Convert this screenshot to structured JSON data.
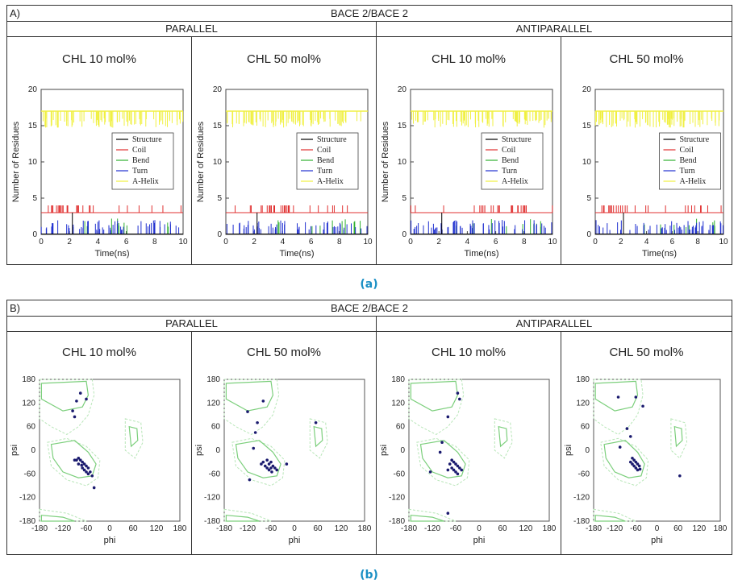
{
  "panels": {
    "a": {
      "letter": "A)",
      "header": "BACE 2/BACE 2",
      "groups": [
        "PARALLEL",
        "ANTIPARALLEL"
      ],
      "caption": "(a)"
    },
    "b": {
      "letter": "B)",
      "header": "BACE 2/BACE 2",
      "groups": [
        "PARALLEL",
        "ANTIPARALLEL"
      ],
      "caption": "(b)"
    }
  },
  "colors": {
    "structure": "#000000",
    "coil": "#e03030",
    "bend": "#30b030",
    "turn": "#2030d0",
    "helix": "#f0f040",
    "points": "#1a1a6e",
    "contour": "#7ccf7c",
    "contour_outer": "#b8e6b8"
  },
  "chart_data": [
    {
      "type": "line",
      "title": "CHL 10 mol%",
      "group": "PARALLEL",
      "xlabel": "Time(ns)",
      "ylabel": "Number of Residues",
      "xlim": [
        0,
        10
      ],
      "ylim": [
        0,
        20
      ],
      "xticks": [
        0,
        2,
        4,
        6,
        8,
        10
      ],
      "yticks": [
        0,
        5,
        10,
        15,
        20
      ],
      "legend": [
        "Structure",
        "Coil",
        "Bend",
        "Turn",
        "A-Helix"
      ],
      "series": [
        {
          "name": "A-Helix",
          "values": [
            17,
            16,
            17
          ]
        },
        {
          "name": "Coil",
          "values": [
            3,
            3,
            4
          ]
        },
        {
          "name": "Turn",
          "values": [
            0,
            1,
            2
          ]
        }
      ]
    },
    {
      "type": "line",
      "title": "CHL 50 mol%",
      "group": "PARALLEL",
      "xlabel": "Time(ns)",
      "ylabel": "Number of Residues",
      "xlim": [
        0,
        10
      ],
      "ylim": [
        0,
        20
      ],
      "xticks": [
        0,
        2,
        4,
        6,
        8,
        10
      ],
      "yticks": [
        0,
        5,
        10,
        15,
        20
      ],
      "legend": [
        "Structure",
        "Coil",
        "Bend",
        "Turn",
        "A-Helix"
      ],
      "series": [
        {
          "name": "A-Helix",
          "values": [
            17,
            16,
            17
          ]
        },
        {
          "name": "Coil",
          "values": [
            3,
            4,
            4
          ]
        },
        {
          "name": "Turn",
          "values": [
            0,
            1,
            2
          ]
        }
      ]
    },
    {
      "type": "line",
      "title": "CHL 10 mol%",
      "group": "ANTIPARALLEL",
      "xlabel": "Time(ns)",
      "ylabel": "Number of Residues",
      "xlim": [
        0,
        10
      ],
      "ylim": [
        0,
        20
      ],
      "xticks": [
        0,
        2,
        4,
        6,
        8,
        10
      ],
      "yticks": [
        0,
        5,
        10,
        15,
        20
      ],
      "legend": [
        "Structure",
        "Coil",
        "Bend",
        "Turn",
        "A-Helix"
      ],
      "series": [
        {
          "name": "A-Helix",
          "values": [
            16,
            17,
            16
          ]
        },
        {
          "name": "Coil",
          "values": [
            3,
            4,
            3
          ]
        },
        {
          "name": "Turn",
          "values": [
            0,
            1,
            2
          ]
        }
      ]
    },
    {
      "type": "line",
      "title": "CHL 50 mol%",
      "group": "ANTIPARALLEL",
      "xlabel": "Time(ns)",
      "ylabel": "",
      "xlim": [
        0,
        10
      ],
      "ylim": [
        0,
        20
      ],
      "xticks": [
        0,
        2,
        4,
        6,
        8,
        10
      ],
      "yticks": [
        0,
        5,
        10,
        15,
        20
      ],
      "legend": [
        "Structure",
        "Coil",
        "Bend",
        "Turn",
        "A-Helix"
      ],
      "series": [
        {
          "name": "A-Helix",
          "values": [
            17,
            16,
            17
          ]
        },
        {
          "name": "Coil",
          "values": [
            3,
            4,
            3
          ]
        },
        {
          "name": "Turn",
          "values": [
            0,
            1,
            2
          ]
        }
      ]
    },
    {
      "type": "scatter",
      "title": "CHL 10 mol%",
      "group": "PARALLEL",
      "xlabel": "phi",
      "ylabel": "psi",
      "xlim": [
        -180,
        180
      ],
      "ylim": [
        -180,
        180
      ],
      "xticks": [
        -180,
        -120,
        -60,
        0,
        60,
        120,
        180
      ],
      "yticks": [
        180,
        120,
        60,
        0,
        -60,
        -120,
        -180
      ],
      "points": [
        [
          -75,
          145
        ],
        [
          -85,
          125
        ],
        [
          -95,
          100
        ],
        [
          -90,
          85
        ],
        [
          -60,
          130
        ],
        [
          -80,
          -20
        ],
        [
          -85,
          -25
        ],
        [
          -75,
          -25
        ],
        [
          -70,
          -30
        ],
        [
          -65,
          -35
        ],
        [
          -80,
          -35
        ],
        [
          -60,
          -40
        ],
        [
          -70,
          -45
        ],
        [
          -55,
          -45
        ],
        [
          -65,
          -50
        ],
        [
          -60,
          -55
        ],
        [
          -50,
          -55
        ],
        [
          -55,
          -60
        ],
        [
          -45,
          -65
        ],
        [
          -40,
          -95
        ],
        [
          -90,
          -25
        ],
        [
          -72,
          -38
        ]
      ]
    },
    {
      "type": "scatter",
      "title": "CHL 50 mol%",
      "group": "PARALLEL",
      "xlabel": "phi",
      "ylabel": "psi",
      "xlim": [
        -180,
        180
      ],
      "ylim": [
        -180,
        180
      ],
      "xticks": [
        -180,
        -120,
        -60,
        0,
        60,
        120,
        180
      ],
      "yticks": [
        180,
        120,
        60,
        0,
        -60,
        -120,
        -180
      ],
      "points": [
        [
          -120,
          98
        ],
        [
          -80,
          125
        ],
        [
          -95,
          70
        ],
        [
          -100,
          45
        ],
        [
          -105,
          5
        ],
        [
          -70,
          -25
        ],
        [
          -80,
          -30
        ],
        [
          -65,
          -35
        ],
        [
          -75,
          -40
        ],
        [
          -60,
          -30
        ],
        [
          -55,
          -40
        ],
        [
          -70,
          -45
        ],
        [
          -50,
          -45
        ],
        [
          -65,
          -50
        ],
        [
          -58,
          -55
        ],
        [
          -45,
          -50
        ],
        [
          -20,
          -35
        ],
        [
          -115,
          -75
        ],
        [
          55,
          70
        ],
        [
          -60,
          -45
        ],
        [
          -85,
          -35
        ]
      ]
    },
    {
      "type": "scatter",
      "title": "CHL 10 mol%",
      "group": "ANTIPARALLEL",
      "xlabel": "phi",
      "ylabel": "psi",
      "xlim": [
        -180,
        180
      ],
      "ylim": [
        -180,
        180
      ],
      "xticks": [
        -180,
        -120,
        -60,
        0,
        60,
        120,
        180
      ],
      "yticks": [
        180,
        120,
        60,
        0,
        -60,
        -120,
        -180
      ],
      "points": [
        [
          -55,
          145
        ],
        [
          -50,
          130
        ],
        [
          -80,
          85
        ],
        [
          -95,
          20
        ],
        [
          -100,
          -5
        ],
        [
          -80,
          -50
        ],
        [
          -125,
          -55
        ],
        [
          -70,
          -25
        ],
        [
          -65,
          -30
        ],
        [
          -60,
          -35
        ],
        [
          -55,
          -40
        ],
        [
          -70,
          -45
        ],
        [
          -65,
          -50
        ],
        [
          -50,
          -45
        ],
        [
          -60,
          -55
        ],
        [
          -55,
          -60
        ],
        [
          -45,
          -50
        ],
        [
          -75,
          -35
        ],
        [
          -80,
          -160
        ]
      ]
    },
    {
      "type": "scatter",
      "title": "CHL 50 mol%",
      "group": "ANTIPARALLEL",
      "xlabel": "phi",
      "ylabel": "psi",
      "xlim": [
        -180,
        180
      ],
      "ylim": [
        -180,
        180
      ],
      "xticks": [
        -180,
        -120,
        -60,
        0,
        60,
        120,
        180
      ],
      "yticks": [
        180,
        120,
        60,
        0,
        -60,
        -120,
        -180
      ],
      "points": [
        [
          -110,
          135
        ],
        [
          -60,
          135
        ],
        [
          -40,
          112
        ],
        [
          -85,
          55
        ],
        [
          -75,
          35
        ],
        [
          -105,
          8
        ],
        [
          -70,
          -20
        ],
        [
          -65,
          -25
        ],
        [
          -60,
          -30
        ],
        [
          -70,
          -35
        ],
        [
          -55,
          -35
        ],
        [
          -65,
          -40
        ],
        [
          -50,
          -40
        ],
        [
          -60,
          -45
        ],
        [
          -55,
          -50
        ],
        [
          -48,
          -48
        ],
        [
          -75,
          -30
        ],
        [
          65,
          -65
        ]
      ]
    }
  ]
}
